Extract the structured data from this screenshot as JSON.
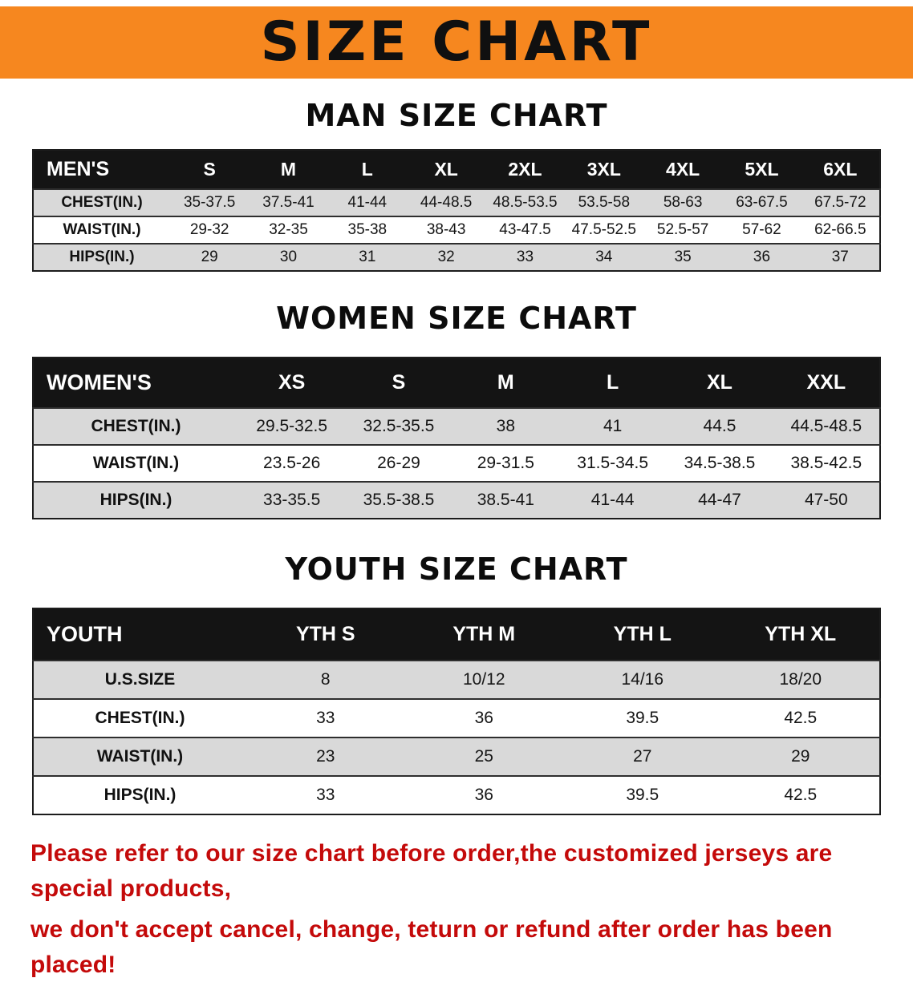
{
  "banner": {
    "title": "SIZE CHART"
  },
  "colors": {
    "banner-orange": "#F6871F",
    "table-header-black": "#141414",
    "stripe-gray": "#D9D9D9",
    "notice-red": "#C40A0A"
  },
  "sections": {
    "men": {
      "heading": "MAN SIZE CHART",
      "table": {
        "header": [
          "MEN'S",
          "S",
          "M",
          "L",
          "XL",
          "2XL",
          "3XL",
          "4XL",
          "5XL",
          "6XL"
        ],
        "rows": [
          [
            "CHEST(IN.)",
            "35-37.5",
            "37.5-41",
            "41-44",
            "44-48.5",
            "48.5-53.5",
            "53.5-58",
            "58-63",
            "63-67.5",
            "67.5-72"
          ],
          [
            "WAIST(IN.)",
            "29-32",
            "32-35",
            "35-38",
            "38-43",
            "43-47.5",
            "47.5-52.5",
            "52.5-57",
            "57-62",
            "62-66.5"
          ],
          [
            "HIPS(IN.)",
            "29",
            "30",
            "31",
            "32",
            "33",
            "34",
            "35",
            "36",
            "37"
          ]
        ]
      }
    },
    "women": {
      "heading": "WOMEN SIZE CHART",
      "table": {
        "header": [
          "WOMEN'S",
          "XS",
          "S",
          "M",
          "L",
          "XL",
          "XXL"
        ],
        "rows": [
          [
            "CHEST(IN.)",
            "29.5-32.5",
            "32.5-35.5",
            "38",
            "41",
            "44.5",
            "44.5-48.5"
          ],
          [
            "WAIST(IN.)",
            "23.5-26",
            "26-29",
            "29-31.5",
            "31.5-34.5",
            "34.5-38.5",
            "38.5-42.5"
          ],
          [
            "HIPS(IN.)",
            "33-35.5",
            "35.5-38.5",
            "38.5-41",
            "41-44",
            "44-47",
            "47-50"
          ]
        ]
      }
    },
    "youth": {
      "heading": "YOUTH SIZE CHART",
      "table": {
        "header": [
          "YOUTH",
          "YTH S",
          "YTH M",
          "YTH L",
          "YTH XL"
        ],
        "rows": [
          [
            "U.S.SIZE",
            "8",
            "10/12",
            "14/16",
            "18/20"
          ],
          [
            "CHEST(IN.)",
            "33",
            "36",
            "39.5",
            "42.5"
          ],
          [
            "WAIST(IN.)",
            "23",
            "25",
            "27",
            "29"
          ],
          [
            "HIPS(IN.)",
            "33",
            "36",
            "39.5",
            "42.5"
          ]
        ]
      }
    }
  },
  "footer": {
    "line1": "Please refer to our size chart before order,the customized jerseys are special products,",
    "line2": "we don't accept cancel, change, teturn or refund after order has been placed!"
  }
}
